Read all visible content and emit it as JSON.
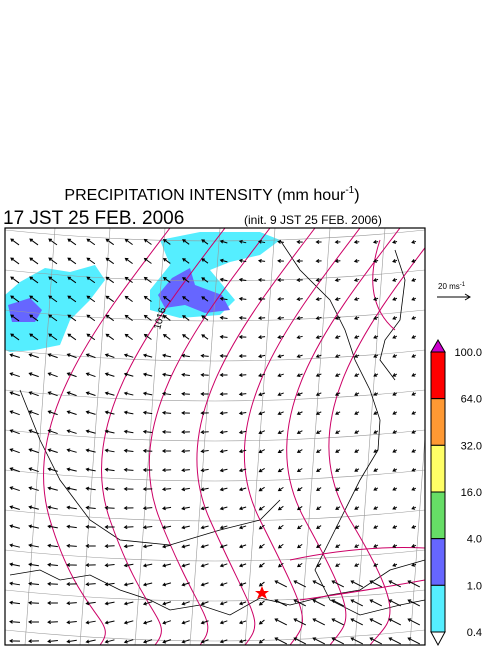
{
  "title": {
    "text": "PRECIPITATION INTENSITY (mm hour",
    "sup": "-1",
    "close": ")"
  },
  "valid_time": "17 JST 25 FEB. 2006",
  "init_time": "(init. 9 JST 25 FEB. 2006)",
  "wind_scale": {
    "text": "20 ms",
    "sup": "-1"
  },
  "isobar_label": "1016",
  "colorbar": {
    "labels": [
      "100.0",
      "64.0",
      "32.0",
      "16.0",
      "4.0",
      "1.0",
      "0.4"
    ],
    "colors": [
      "#cc00cc",
      "#ff0000",
      "#ff9933",
      "#ffff66",
      "#66dd66",
      "#6666ff",
      "#55eeff",
      "#ffffff"
    ]
  }
}
